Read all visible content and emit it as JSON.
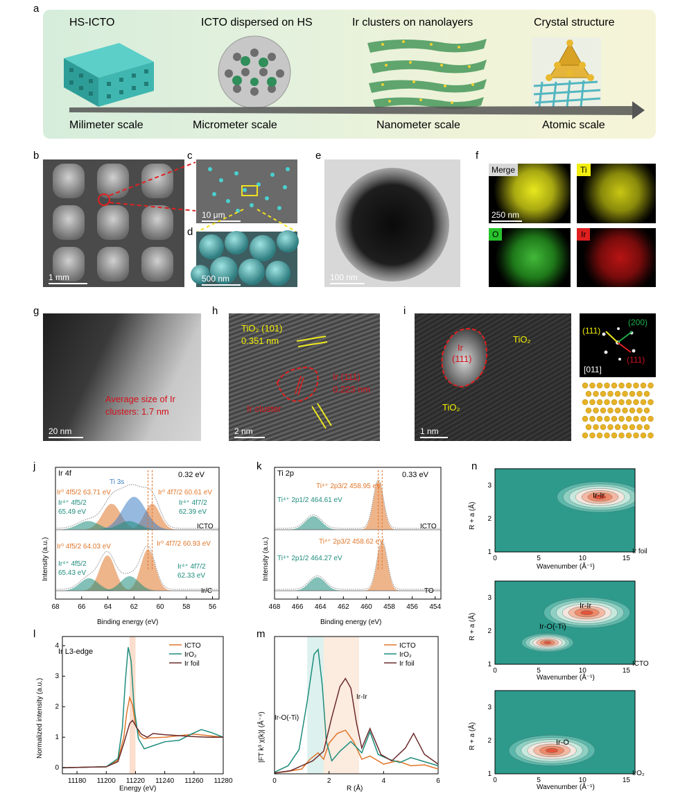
{
  "panel_a": {
    "label": "a",
    "titles": [
      "HS-ICTO",
      "ICTO dispersed on HS",
      "Ir clusters on nanolayers",
      "Crystal structure"
    ],
    "scales": [
      "Milimeter scale",
      "Micrometer scale",
      "Nanometer scale",
      "Atomic scale"
    ]
  },
  "panel_b": {
    "label": "b",
    "scalebar": "1 mm"
  },
  "panel_c": {
    "label": "c",
    "scalebar": "10 μm"
  },
  "panel_d": {
    "label": "d",
    "scalebar": "500 nm"
  },
  "panel_e": {
    "label": "e",
    "scalebar": "100 nm"
  },
  "panel_f": {
    "label": "f",
    "maps": [
      "Merge",
      "Ti",
      "O",
      "Ir"
    ],
    "scalebar": "250 nm"
  },
  "panel_g": {
    "label": "g",
    "scalebar": "20 nm",
    "note_line1": "Average size of Ir",
    "note_line2": "clusters: 1.7 nm"
  },
  "panel_h": {
    "label": "h",
    "scalebar": "2 nm",
    "tio2_plane": "TiO₂ (101)",
    "tio2_spacing": "0.351 nm",
    "ir_plane": "Ir (111)",
    "ir_spacing": "0.223 nm",
    "cluster": "Ir cluster"
  },
  "panel_i": {
    "label": "i",
    "scalebar": "1 nm",
    "ir_label": "Ir",
    "ir_plane": "(111)",
    "tio2_a": "TiO₂",
    "tio2_b": "TiO₂",
    "fft_111": "(111)",
    "fft_200": "(200)",
    "fft_11bar1": "(111)",
    "zone": "[011]"
  },
  "chart_data": [
    {
      "panel": "j",
      "type": "line",
      "title": "Ir 4f",
      "xlabel": "Binding energy (eV)",
      "ylabel": "Intensity (a.u.)",
      "xlim": [
        68,
        55.5
      ],
      "x_ticks": [
        "68",
        "66",
        "64",
        "62",
        "60",
        "58",
        "56"
      ],
      "shift": "0.32 eV",
      "samples": [
        "ICTO",
        "Ir/C"
      ],
      "annotations": {
        "icto": [
          "Ti 3s",
          "Ir⁰ 4f5/2 63.71 eV",
          "Ir⁰ 4f7/2 60.61 eV",
          "Ir⁴⁺ 4f5/2",
          "65.49 eV",
          "Ir⁴⁺ 4f7/2",
          "62.39 eV"
        ],
        "irc": [
          "Ir⁰ 4f5/2 64.03 eV",
          "Ir⁰ 4f7/2 60.93 eV",
          "Ir⁴⁺ 4f5/2",
          "65.43 eV",
          "Ir⁴⁺ 4f7/2",
          "62.33 eV"
        ]
      }
    },
    {
      "panel": "k",
      "type": "line",
      "title": "Ti 2p",
      "xlabel": "Binding energy (eV)",
      "ylabel": "Intensity (a.u.)",
      "xlim": [
        468,
        453.5
      ],
      "x_ticks": [
        "468",
        "466",
        "464",
        "462",
        "460",
        "458",
        "456",
        "454"
      ],
      "shift": "0.33 eV",
      "samples": [
        "ICTO",
        "TO"
      ],
      "annotations": {
        "icto": [
          "Ti⁴⁺ 2p3/2 458.95 eV",
          "Ti⁴⁺ 2p1/2 464.61 eV"
        ],
        "to": [
          "Ti⁴⁺ 2p3/2 458.62 eV",
          "Ti⁴⁺ 2p1/2 464.27 eV"
        ]
      }
    },
    {
      "panel": "l",
      "type": "line",
      "title": "Ir L3-edge",
      "xlabel": "Energy (eV)",
      "ylabel": "Normalized intensity (a.u.)",
      "xlim": [
        11170,
        11280
      ],
      "ylim": [
        -0.2,
        4.3
      ],
      "x_ticks": [
        "11180",
        "11200",
        "11220",
        "11240",
        "11260",
        "11280"
      ],
      "y_ticks": [
        "0",
        "1",
        "2",
        "3",
        "4"
      ],
      "series": [
        {
          "name": "ICTO",
          "color": "#e0762a",
          "x": [
            11170,
            11200,
            11208,
            11212,
            11214,
            11216,
            11218,
            11220,
            11223,
            11226,
            11230,
            11240,
            11250,
            11260,
            11270,
            11280
          ],
          "y": [
            0,
            0.03,
            0.25,
            1.0,
            1.8,
            2.3,
            2.05,
            1.4,
            1.05,
            0.95,
            0.98,
            1.0,
            1.05,
            1.1,
            1.05,
            1.0
          ]
        },
        {
          "name": "IrO₂",
          "color": "#1d8c7c",
          "x": [
            11170,
            11200,
            11208,
            11211,
            11213,
            11215,
            11217,
            11219,
            11222,
            11226,
            11232,
            11240,
            11250,
            11258,
            11265,
            11272,
            11280
          ],
          "y": [
            0,
            0.03,
            0.3,
            1.3,
            2.8,
            3.95,
            3.5,
            2.0,
            0.95,
            0.62,
            0.72,
            0.85,
            0.9,
            1.1,
            1.25,
            1.15,
            1.0
          ]
        },
        {
          "name": "Ir foil",
          "color": "#6b2a2a",
          "x": [
            11170,
            11200,
            11208,
            11212,
            11216,
            11218,
            11221,
            11224,
            11228,
            11232,
            11240,
            11250,
            11260,
            11270,
            11280
          ],
          "y": [
            0,
            0.03,
            0.2,
            0.8,
            1.45,
            1.55,
            1.3,
            1.1,
            1.0,
            1.12,
            1.08,
            1.05,
            1.02,
            1.0,
            1.0
          ]
        }
      ]
    },
    {
      "panel": "m",
      "type": "line",
      "xlabel": "R (Å)",
      "ylabel": "|FT k³ χ(k)|  (Å⁻⁴)",
      "xlim": [
        0,
        6
      ],
      "x_ticks": [
        "0",
        "2",
        "4",
        "6"
      ],
      "labels": [
        "Ir-O(-Ti)",
        "Ir-Ir"
      ],
      "series": [
        {
          "name": "ICTO",
          "color": "#e0762a",
          "x": [
            0,
            0.5,
            1.0,
            1.3,
            1.6,
            1.8,
            2.0,
            2.3,
            2.6,
            2.9,
            3.2,
            3.5,
            4.0,
            4.5,
            5.0,
            5.5,
            6.0
          ],
          "y": [
            0.05,
            0.15,
            0.3,
            0.9,
            1.3,
            0.9,
            1.9,
            2.5,
            2.7,
            2.0,
            0.9,
            1.1,
            0.6,
            0.8,
            0.5,
            0.55,
            0.3
          ]
        },
        {
          "name": "IrO₂",
          "color": "#1d8c7c",
          "x": [
            0,
            0.5,
            0.9,
            1.2,
            1.45,
            1.6,
            1.75,
            1.9,
            2.1,
            2.4,
            2.8,
            3.2,
            3.5,
            3.8,
            4.2,
            4.6,
            5.0,
            5.4,
            6.0
          ],
          "y": [
            0.1,
            0.5,
            1.5,
            4.5,
            7.4,
            7.7,
            5.5,
            2.0,
            0.8,
            1.4,
            2.0,
            1.3,
            2.6,
            1.2,
            0.9,
            0.7,
            1.0,
            0.8,
            0.5
          ]
        },
        {
          "name": "Ir foil",
          "color": "#6b2a2a",
          "x": [
            0,
            0.6,
            1.0,
            1.4,
            1.8,
            2.1,
            2.4,
            2.6,
            2.8,
            3.0,
            3.2,
            3.5,
            3.9,
            4.3,
            4.8,
            5.1,
            5.5,
            6.0
          ],
          "y": [
            0.05,
            0.2,
            0.5,
            0.8,
            1.4,
            3.5,
            5.4,
            5.9,
            5.3,
            3.2,
            1.6,
            2.8,
            1.2,
            0.8,
            1.6,
            2.5,
            1.2,
            0.6
          ]
        }
      ]
    },
    {
      "panel": "n",
      "type": "heatmap",
      "xlabel": "Wavenumber (Å⁻¹)",
      "ylabel": "R + a (Å)",
      "xlim": [
        0,
        16
      ],
      "ylim": [
        1,
        3.5
      ],
      "x_ticks": [
        "0",
        "5",
        "10",
        "15"
      ],
      "y_ticks": [
        "1",
        "2",
        "3"
      ],
      "maps": [
        {
          "sample": "Ir foil",
          "peaks": [
            {
              "label": "Ir-Ir",
              "k": 12,
              "r": 2.65
            }
          ]
        },
        {
          "sample": "ICTO",
          "peaks": [
            {
              "label": "Ir-Ir",
              "k": 10.5,
              "r": 2.55
            },
            {
              "label": "Ir-O(-Ti)",
              "k": 6,
              "r": 1.65
            }
          ]
        },
        {
          "sample": "IrO₂",
          "peaks": [
            {
              "label": "Ir-O",
              "k": 6.5,
              "r": 1.7
            }
          ]
        }
      ]
    }
  ]
}
